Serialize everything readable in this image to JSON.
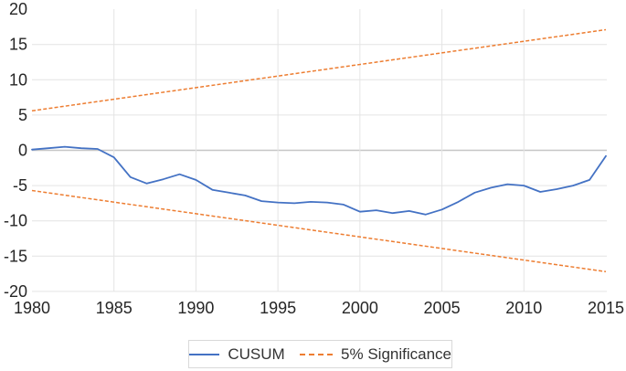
{
  "chart_data": {
    "type": "line",
    "title": "",
    "xlabel": "",
    "ylabel": "",
    "xlim": [
      1980,
      2015
    ],
    "ylim": [
      -20,
      20
    ],
    "xticks": [
      1980,
      1985,
      1990,
      1995,
      2000,
      2005,
      2010,
      2015
    ],
    "yticks": [
      20,
      15,
      10,
      5,
      0,
      -5,
      -10,
      -15,
      -20
    ],
    "grid": true,
    "legend_position": "bottom",
    "x_years": [
      1980,
      1981,
      1982,
      1983,
      1984,
      1985,
      1986,
      1987,
      1988,
      1989,
      1990,
      1991,
      1992,
      1993,
      1994,
      1995,
      1996,
      1997,
      1998,
      1999,
      2000,
      2001,
      2002,
      2003,
      2004,
      2005,
      2006,
      2007,
      2008,
      2009,
      2010,
      2011,
      2012,
      2013,
      2014,
      2015
    ],
    "series": [
      {
        "name": "CUSUM",
        "color": "#4472C4",
        "dash": "solid",
        "values": [
          0.1,
          0.3,
          0.5,
          0.3,
          0.2,
          -1.0,
          -3.8,
          -4.7,
          -4.1,
          -3.4,
          -4.2,
          -5.6,
          -6.0,
          -6.4,
          -7.2,
          -7.4,
          -7.5,
          -7.3,
          -7.4,
          -7.7,
          -8.7,
          -8.5,
          -8.9,
          -8.6,
          -9.1,
          -8.4,
          -7.3,
          -6.0,
          -5.3,
          -4.8,
          -5.0,
          -5.9,
          -5.5,
          -5.0,
          -4.2,
          -0.8
        ]
      },
      {
        "name": "5% Significance",
        "color": "#ED7D31",
        "dash": "dashed",
        "lines": [
          {
            "x": [
              1980,
              2015
            ],
            "y": [
              5.6,
              17.1
            ]
          },
          {
            "x": [
              1980,
              2015
            ],
            "y": [
              -5.7,
              -17.2
            ]
          }
        ]
      }
    ]
  },
  "colors": {
    "cusum_line": "#4472C4",
    "significance_line": "#ED7D31",
    "gridline": "#E4E4E4",
    "zero_axis_line": "#C6C6C6",
    "tick_text": "#262626",
    "legend_border": "#D9D9D9"
  },
  "legend": {
    "items": [
      {
        "label": "CUSUM"
      },
      {
        "label": "5% Significance"
      }
    ]
  }
}
